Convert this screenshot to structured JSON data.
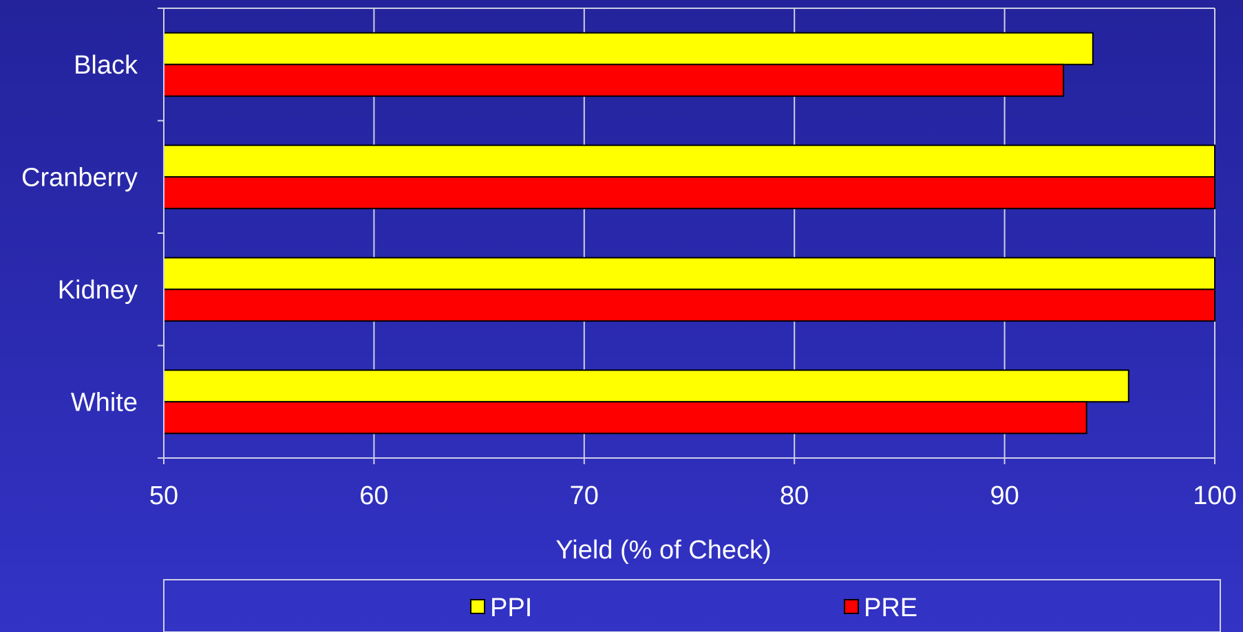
{
  "chart_data": {
    "type": "bar",
    "orientation": "horizontal",
    "categories": [
      "Black",
      "Cranberry",
      "Kidney",
      "White"
    ],
    "series": [
      {
        "name": "PPI",
        "color": "#ffff00",
        "values": [
          94.2,
          100,
          100,
          95.9
        ]
      },
      {
        "name": "PRE",
        "color": "#ff0000",
        "values": [
          92.8,
          100,
          100,
          93.9
        ]
      }
    ],
    "xlabel": "Yield (% of Check)",
    "ylabel": "",
    "xlim": [
      50,
      100
    ],
    "xticks": [
      "50",
      "60",
      "70",
      "80",
      "90",
      "100"
    ],
    "grid": true,
    "legend": {
      "position": "bottom",
      "items": [
        "PPI",
        "PRE"
      ]
    }
  },
  "colors": {
    "background": "#2b2bb2",
    "axis": "#d0d0e8",
    "gridline": "#d0d0e8",
    "bar_outline": "#000000",
    "text": "#ffffff"
  }
}
